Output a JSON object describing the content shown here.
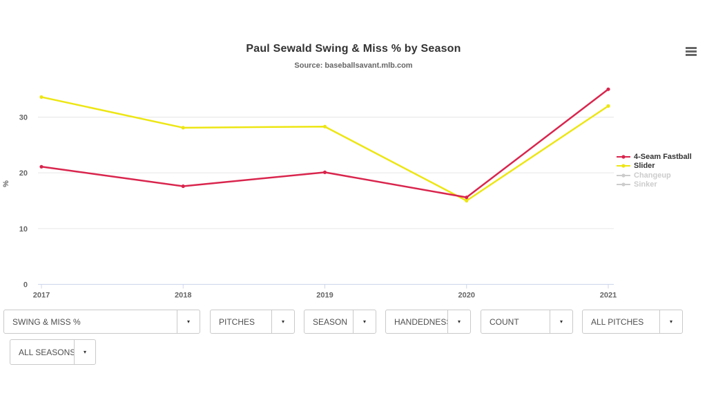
{
  "header": {
    "title": "Paul Sewald Swing & Miss % by Season",
    "subtitle": "Source: baseballsavant.mlb.com"
  },
  "menu": {
    "icon": "hamburger-icon"
  },
  "chart_data": {
    "type": "line",
    "title": "Paul Sewald Swing & Miss % by Season",
    "subtitle": "Source: baseballsavant.mlb.com",
    "x": [
      2017,
      2018,
      2019,
      2020,
      2021
    ],
    "xlabel": "",
    "ylabel": "%",
    "yticks": [
      0,
      10,
      20,
      30
    ],
    "ylim": [
      0,
      37
    ],
    "grid": "horizontal",
    "legend_position": "right",
    "series": [
      {
        "name": "4-Seam Fastball",
        "color": "#d9254d",
        "visible": true,
        "values": [
          21.1,
          17.6,
          20.1,
          15.6,
          35.0
        ]
      },
      {
        "name": "Slider",
        "color": "#ede613",
        "visible": true,
        "values": [
          33.6,
          28.1,
          28.3,
          15.0,
          32.0
        ]
      },
      {
        "name": "Changeup",
        "color": "#cccccc",
        "visible": false,
        "values": []
      },
      {
        "name": "Sinker",
        "color": "#cccccc",
        "visible": false,
        "values": []
      }
    ],
    "colors": {
      "grid": "#e6e6e6",
      "axis_line": "#ccd6eb",
      "tick_label": "#666666",
      "disabled_legend": "#cccccc"
    }
  },
  "filters": {
    "row1": [
      {
        "label": "SWING & MISS %"
      },
      {
        "label": "PITCHES"
      },
      {
        "label": "SEASON"
      },
      {
        "label": "HANDEDNESS"
      },
      {
        "label": "COUNT"
      },
      {
        "label": "ALL PITCHES"
      }
    ],
    "row2": [
      {
        "label": "ALL SEASONS"
      }
    ]
  }
}
